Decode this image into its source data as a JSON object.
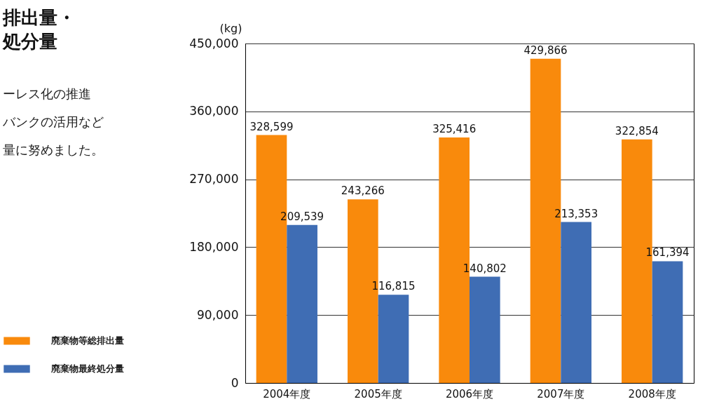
{
  "chart_data": {
    "type": "bar",
    "title": "排出量・処分量",
    "annotations": [
      "ーレス化の推進",
      "バンクの活用など",
      "量に努めました。"
    ],
    "ylabel": "(kg)",
    "categories": [
      "2004年度",
      "2005年度",
      "2006年度",
      "2007年度",
      "2008年度"
    ],
    "series": [
      {
        "name": "廃棄物等総排出量",
        "color": "#f98a0c",
        "values": [
          328599,
          243266,
          325416,
          429866,
          322854
        ],
        "value_labels": [
          "328,599",
          "243,266",
          "325,416",
          "429,866",
          "322,854"
        ]
      },
      {
        "name": "廃棄物最終処分量",
        "color": "#3f6db4",
        "values": [
          209539,
          116815,
          140802,
          213353,
          161394
        ],
        "value_labels": [
          "209,539",
          "116,815",
          "140,802",
          "213,353",
          "161,394"
        ]
      }
    ],
    "ylim": [
      0,
      450000
    ],
    "yticks": [
      0,
      {
        "value": 90000,
        "label": "90,000"
      },
      {
        "value": 180000,
        "label": "180,000"
      },
      {
        "value": 270000,
        "label": "270,000"
      },
      {
        "value": 360000,
        "label": "360,000"
      },
      {
        "value": 450000,
        "label": "450,000"
      }
    ],
    "grid": "y",
    "legend": "bottom left"
  }
}
